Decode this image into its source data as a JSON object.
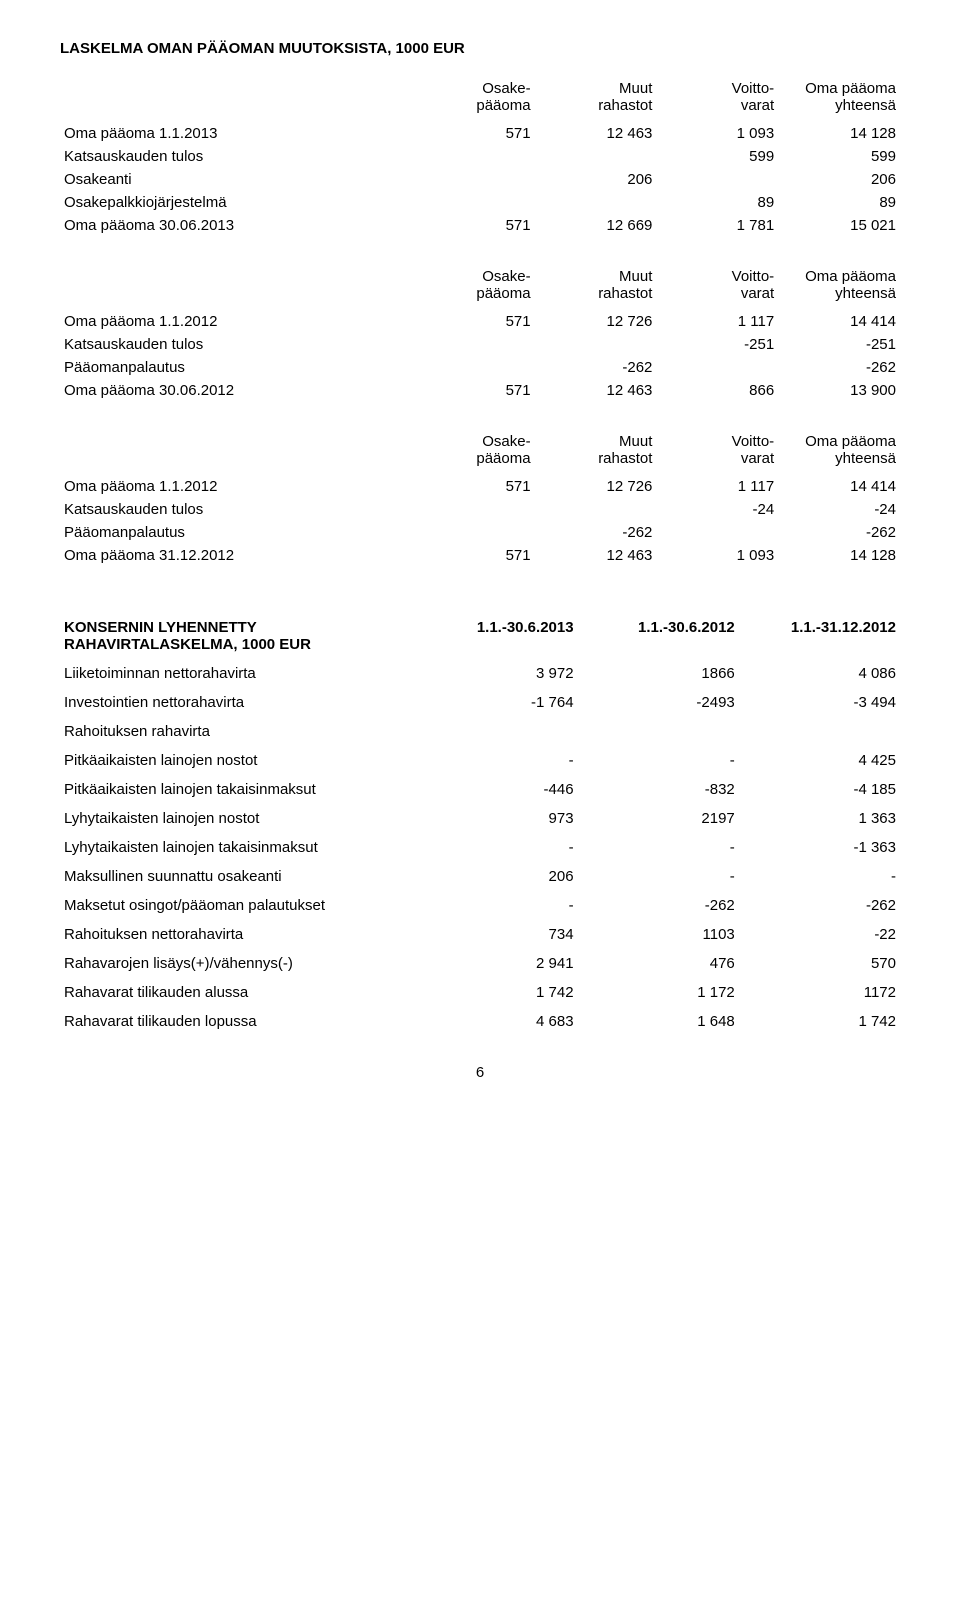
{
  "title": "LASKELMA OMAN PÄÄOMAN MUUTOKSISTA, 1000 EUR",
  "headers": {
    "c1a": "Osake-",
    "c1b": "pääoma",
    "c2a": "Muut",
    "c2b": "rahastot",
    "c3a": "Voitto-",
    "c3b": "varat",
    "c4a": "Oma pääoma",
    "c4b": "yhteensä"
  },
  "block1": {
    "r1": {
      "label": "Oma pääoma 1.1.2013",
      "v1": "571",
      "v2": "12 463",
      "v3": "1 093",
      "v4": "14 128"
    },
    "r2": {
      "label": "Katsauskauden tulos",
      "v1": "",
      "v2": "",
      "v3": "599",
      "v4": "599"
    },
    "r3": {
      "label": "Osakeanti",
      "v1": "",
      "v2": "206",
      "v3": "",
      "v4": "206"
    },
    "r4": {
      "label": "Osakepalkkiojärjestelmä",
      "v1": "",
      "v2": "",
      "v3": "89",
      "v4": "89"
    },
    "r5": {
      "label": "Oma pääoma 30.06.2013",
      "v1": "571",
      "v2": "12 669",
      "v3": "1 781",
      "v4": "15 021"
    }
  },
  "block2": {
    "r1": {
      "label": "Oma pääoma 1.1.2012",
      "v1": "571",
      "v2": "12 726",
      "v3": "1 117",
      "v4": "14 414"
    },
    "r2": {
      "label": "Katsauskauden tulos",
      "v1": "",
      "v2": "",
      "v3": "-251",
      "v4": "-251"
    },
    "r3": {
      "label": "Pääomanpalautus",
      "v1": "",
      "v2": "-262",
      "v3": "",
      "v4": "-262"
    },
    "r4": {
      "label": "Oma pääoma 30.06.2012",
      "v1": "571",
      "v2": "12 463",
      "v3": "866",
      "v4": "13 900"
    }
  },
  "block3": {
    "r1": {
      "label": "Oma pääoma 1.1.2012",
      "v1": "571",
      "v2": "12 726",
      "v3": "1 117",
      "v4": "14 414"
    },
    "r2": {
      "label": "Katsauskauden tulos",
      "v1": "",
      "v2": "",
      "v3": "-24",
      "v4": "-24"
    },
    "r3": {
      "label": "Pääomanpalautus",
      "v1": "",
      "v2": "-262",
      "v3": "",
      "v4": "-262"
    },
    "r4": {
      "label": "Oma pääoma 31.12.2012",
      "v1": "571",
      "v2": "12 463",
      "v3": "1 093",
      "v4": "14 128"
    }
  },
  "cashflow": {
    "title1": "KONSERNIN LYHENNETTY",
    "title2": "RAHAVIRTALASKELMA, 1000 EUR",
    "h1": "1.1.-30.6.2013",
    "h2": "1.1.-30.6.2012",
    "h3": "1.1.-31.12.2012",
    "rows": [
      {
        "label": "Liiketoiminnan nettorahavirta",
        "v1": "3 972",
        "v2": "1866",
        "v3": "4 086"
      },
      {
        "label": "Investointien nettorahavirta",
        "v1": "-1 764",
        "v2": "-2493",
        "v3": "-3 494"
      },
      {
        "label": "Rahoituksen rahavirta",
        "v1": "",
        "v2": "",
        "v3": ""
      },
      {
        "label": "Pitkäaikaisten lainojen nostot",
        "v1": "-",
        "v2": "-",
        "v3": "4 425"
      },
      {
        "label": "Pitkäaikaisten lainojen takaisinmaksut",
        "v1": "-446",
        "v2": "-832",
        "v3": "-4 185"
      },
      {
        "label": "Lyhytaikaisten lainojen nostot",
        "v1": "973",
        "v2": "2197",
        "v3": "1 363"
      },
      {
        "label": "Lyhytaikaisten lainojen takaisinmaksut",
        "v1": "-",
        "v2": "-",
        "v3": "-1 363"
      },
      {
        "label": "Maksullinen suunnattu osakeanti",
        "v1": "206",
        "v2": "-",
        "v3": "-"
      },
      {
        "label": "Maksetut osingot/pääoman palautukset",
        "v1": "-",
        "v2": "-262",
        "v3": "-262"
      },
      {
        "label": "Rahoituksen nettorahavirta",
        "v1": "734",
        "v2": "1103",
        "v3": "-22"
      },
      {
        "label": "Rahavarojen lisäys(+)/vähennys(-)",
        "v1": "2 941",
        "v2": "476",
        "v3": "570"
      },
      {
        "label": "Rahavarat tilikauden alussa",
        "v1": "1 742",
        "v2": "1 172",
        "v3": "1172"
      },
      {
        "label": "Rahavarat tilikauden lopussa",
        "v1": "4 683",
        "v2": "1 648",
        "v3": "1 742"
      }
    ]
  },
  "pageNumber": "6"
}
